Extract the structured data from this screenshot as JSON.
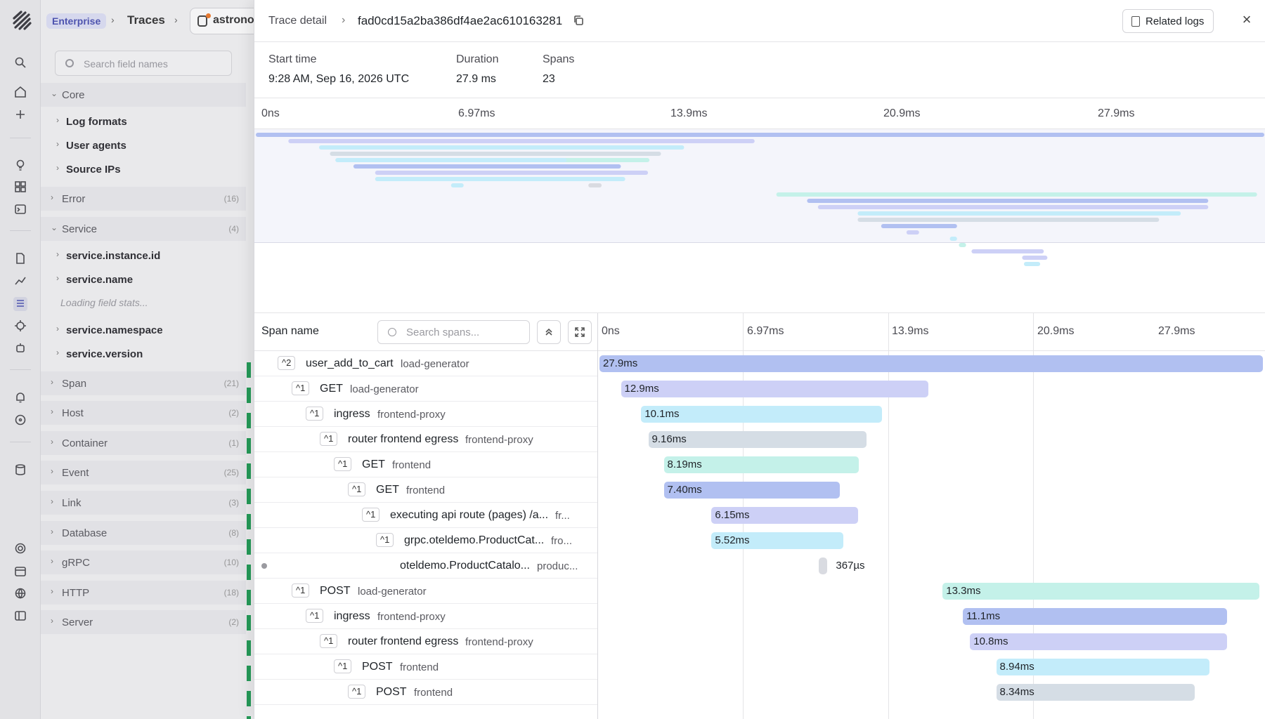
{
  "background": {
    "breadcrumb": {
      "badge": "Enterprise",
      "section": "Traces",
      "project": "astronomy"
    },
    "fields_search_placeholder": "Search field names",
    "field_groups": [
      {
        "label": "Core",
        "expanded": true,
        "children": [
          "Log formats",
          "User agents",
          "Source IPs"
        ]
      },
      {
        "label": "Error",
        "count": "(16)"
      },
      {
        "label": "Service",
        "count": "(4)",
        "expanded": true,
        "children": [
          "service.instance.id",
          "service.name"
        ],
        "loading": "Loading field stats...",
        "children_after": [
          "service.namespace",
          "service.version"
        ]
      },
      {
        "label": "Span",
        "count": "(21)"
      },
      {
        "label": "Host",
        "count": "(2)"
      },
      {
        "label": "Container",
        "count": "(1)"
      },
      {
        "label": "Event",
        "count": "(25)"
      },
      {
        "label": "Link",
        "count": "(3)"
      },
      {
        "label": "Database",
        "count": "(8)"
      },
      {
        "label": "gRPC",
        "count": "(10)"
      },
      {
        "label": "HTTP",
        "count": "(18)"
      },
      {
        "label": "Server",
        "count": "(2)"
      }
    ]
  },
  "drawer": {
    "title": "Trace detail",
    "trace_id": "fad0cd15a2ba386df4ae2ac610163281",
    "related_logs_label": "Related logs",
    "close_glyph": "×",
    "summary": {
      "start_time_label": "Start time",
      "start_time": "9:28 AM, Sep 16, 2026 UTC",
      "duration_label": "Duration",
      "duration": "27.9 ms",
      "spans_label": "Spans",
      "spans": "23"
    },
    "ticks": [
      "0ns",
      "6.97ms",
      "13.9ms",
      "20.9ms",
      "27.9ms"
    ],
    "span_header": "Span name",
    "search_placeholder": "Search spans...",
    "total_ms": 27.9,
    "colors": {
      "blue": "#b1c0f1",
      "lavender": "#cdd0f6",
      "cyan": "#c3ecfa",
      "gray": "#d5dde5",
      "teal": "#c4f1e9",
      "leaf": "#d9dbe1"
    },
    "rows": [
      {
        "toggle": "^2",
        "name": "user_add_to_cart",
        "service": "load-generator",
        "depth": 0,
        "start_ms": 0.0,
        "dur_ms": 27.9,
        "label": "27.9ms",
        "color": "blue"
      },
      {
        "toggle": "^1",
        "name": "GET",
        "service": "load-generator",
        "depth": 1,
        "start_ms": 0.9,
        "dur_ms": 12.9,
        "label": "12.9ms",
        "color": "lavender"
      },
      {
        "toggle": "^1",
        "name": "ingress",
        "service": "frontend-proxy",
        "depth": 2,
        "start_ms": 1.75,
        "dur_ms": 10.1,
        "label": "10.1ms",
        "color": "cyan"
      },
      {
        "toggle": "^1",
        "name": "router frontend egress",
        "service": "frontend-proxy",
        "depth": 3,
        "start_ms": 2.05,
        "dur_ms": 9.16,
        "label": "9.16ms",
        "color": "gray"
      },
      {
        "toggle": "^1",
        "name": "GET",
        "service": "frontend",
        "depth": 4,
        "start_ms": 2.7,
        "dur_ms": 8.19,
        "label": "8.19ms",
        "color": "teal"
      },
      {
        "toggle": "^1",
        "name": "GET",
        "service": "frontend",
        "depth": 5,
        "start_ms": 2.7,
        "dur_ms": 7.4,
        "label": "7.40ms",
        "color": "blue"
      },
      {
        "toggle": "^1",
        "name": "executing api route (pages) /a...",
        "service": "fr...",
        "depth": 6,
        "start_ms": 4.7,
        "dur_ms": 6.15,
        "label": "6.15ms",
        "color": "lavender"
      },
      {
        "toggle": "^1",
        "name": "grpc.oteldemo.ProductCat...",
        "service": "fro...",
        "depth": 7,
        "start_ms": 4.7,
        "dur_ms": 5.52,
        "label": "5.52ms",
        "color": "cyan"
      },
      {
        "toggle": "",
        "name": "oteldemo.ProductCatalo...",
        "service": "produc...",
        "depth": 8,
        "start_ms": 9.2,
        "dur_ms": 0.367,
        "label": "367µs",
        "color": "leaf"
      },
      {
        "toggle": "^1",
        "name": "POST",
        "service": "load-generator",
        "depth": 1,
        "start_ms": 14.4,
        "dur_ms": 13.3,
        "label": "13.3ms",
        "color": "teal"
      },
      {
        "toggle": "^1",
        "name": "ingress",
        "service": "frontend-proxy",
        "depth": 2,
        "start_ms": 15.25,
        "dur_ms": 11.1,
        "label": "11.1ms",
        "color": "blue"
      },
      {
        "toggle": "^1",
        "name": "router frontend egress",
        "service": "frontend-proxy",
        "depth": 3,
        "start_ms": 15.55,
        "dur_ms": 10.8,
        "label": "10.8ms",
        "color": "lavender"
      },
      {
        "toggle": "^1",
        "name": "POST",
        "service": "frontend",
        "depth": 4,
        "start_ms": 16.65,
        "dur_ms": 8.94,
        "label": "8.94ms",
        "color": "cyan"
      },
      {
        "toggle": "^1",
        "name": "POST",
        "service": "frontend",
        "depth": 5,
        "start_ms": 16.65,
        "dur_ms": 8.34,
        "label": "8.34ms",
        "color": "gray"
      }
    ]
  }
}
